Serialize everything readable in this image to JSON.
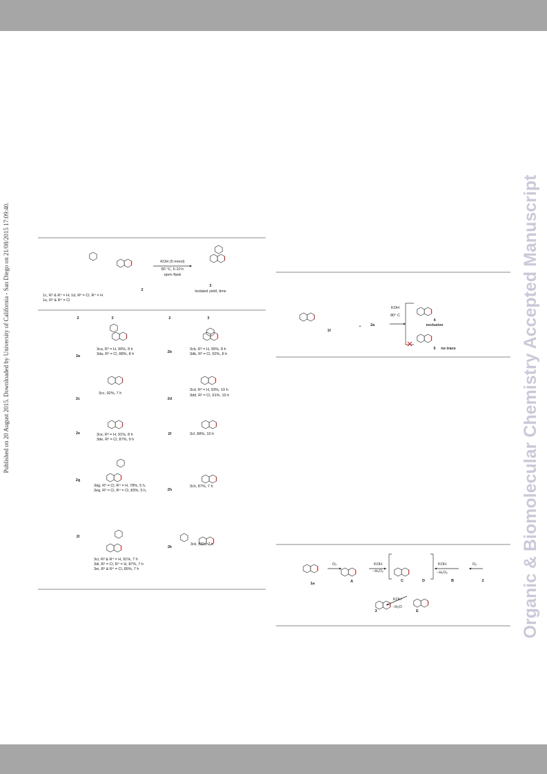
{
  "side_note": "Published on 20 August 2015. Downloaded by University of California - San Diego on 21/08/2015 17:09:40.",
  "watermark": "Organic & Biomolecular Chemistry Accepted Manuscript",
  "table": {
    "header": [
      "1c, R³ & R⁴ = H; 1d, R³ = Cl, R⁴ = H",
      "1e, R³ & R⁴ = Cl",
      "KOH (5 mmol)",
      "80 °C, 5-10 h",
      "open flask",
      "2",
      "3",
      "Isolated yield, time"
    ],
    "columns": [
      "2",
      "3",
      "2",
      "3"
    ],
    "entries": [
      "2a",
      "3ca, R³ = H, 90%, 8 h",
      "3da, R³ = Cl, 88%, 8 h",
      "2b",
      "3cb, R³ = H, 95%, 8 h",
      "3db, R³ = Cl, 92%, 8 h",
      "2c",
      "3cc, 92%, 7 h",
      "2d",
      "3cd, R³ = H, 93%, 10 h",
      "3dd, R³ = Cl, 91%, 10 h",
      "2e",
      "3ce, R³ = H, 91%, 8 h",
      "3de, R³ = Cl, 87%, 9 h",
      "2f",
      "3cf, 88%, 10 h",
      "2g",
      "3dg, R³ = Cl, R⁴ = H, 78%, 5 h,",
      "3eg, R³ = Cl, R⁴ = Cl, 83%, 5 h,",
      "2h",
      "3ch, 87%, 7 h",
      "2l",
      "3ci, R³ & R⁴ = H, 91%, 7 h",
      "3di, R³ = Cl, R⁴ = H, 87%, 7 h",
      "3ei, R³ & R⁴ = Cl, 85%, 7 h",
      "2k",
      "3ck, 83%, 7 h"
    ]
  },
  "scheme1": [
    "1f",
    "+",
    "2a",
    "KOH",
    "80° C",
    "4",
    "exclusive",
    "5",
    "no trace"
  ],
  "scheme2": [
    "1a",
    "O₂",
    "A",
    "KOH",
    "−H₂O₂",
    "C",
    "D",
    "KOH",
    "−H₂O₂",
    "B",
    "O₂",
    "2",
    "E",
    "KOH",
    "−H₂O",
    "3"
  ]
}
